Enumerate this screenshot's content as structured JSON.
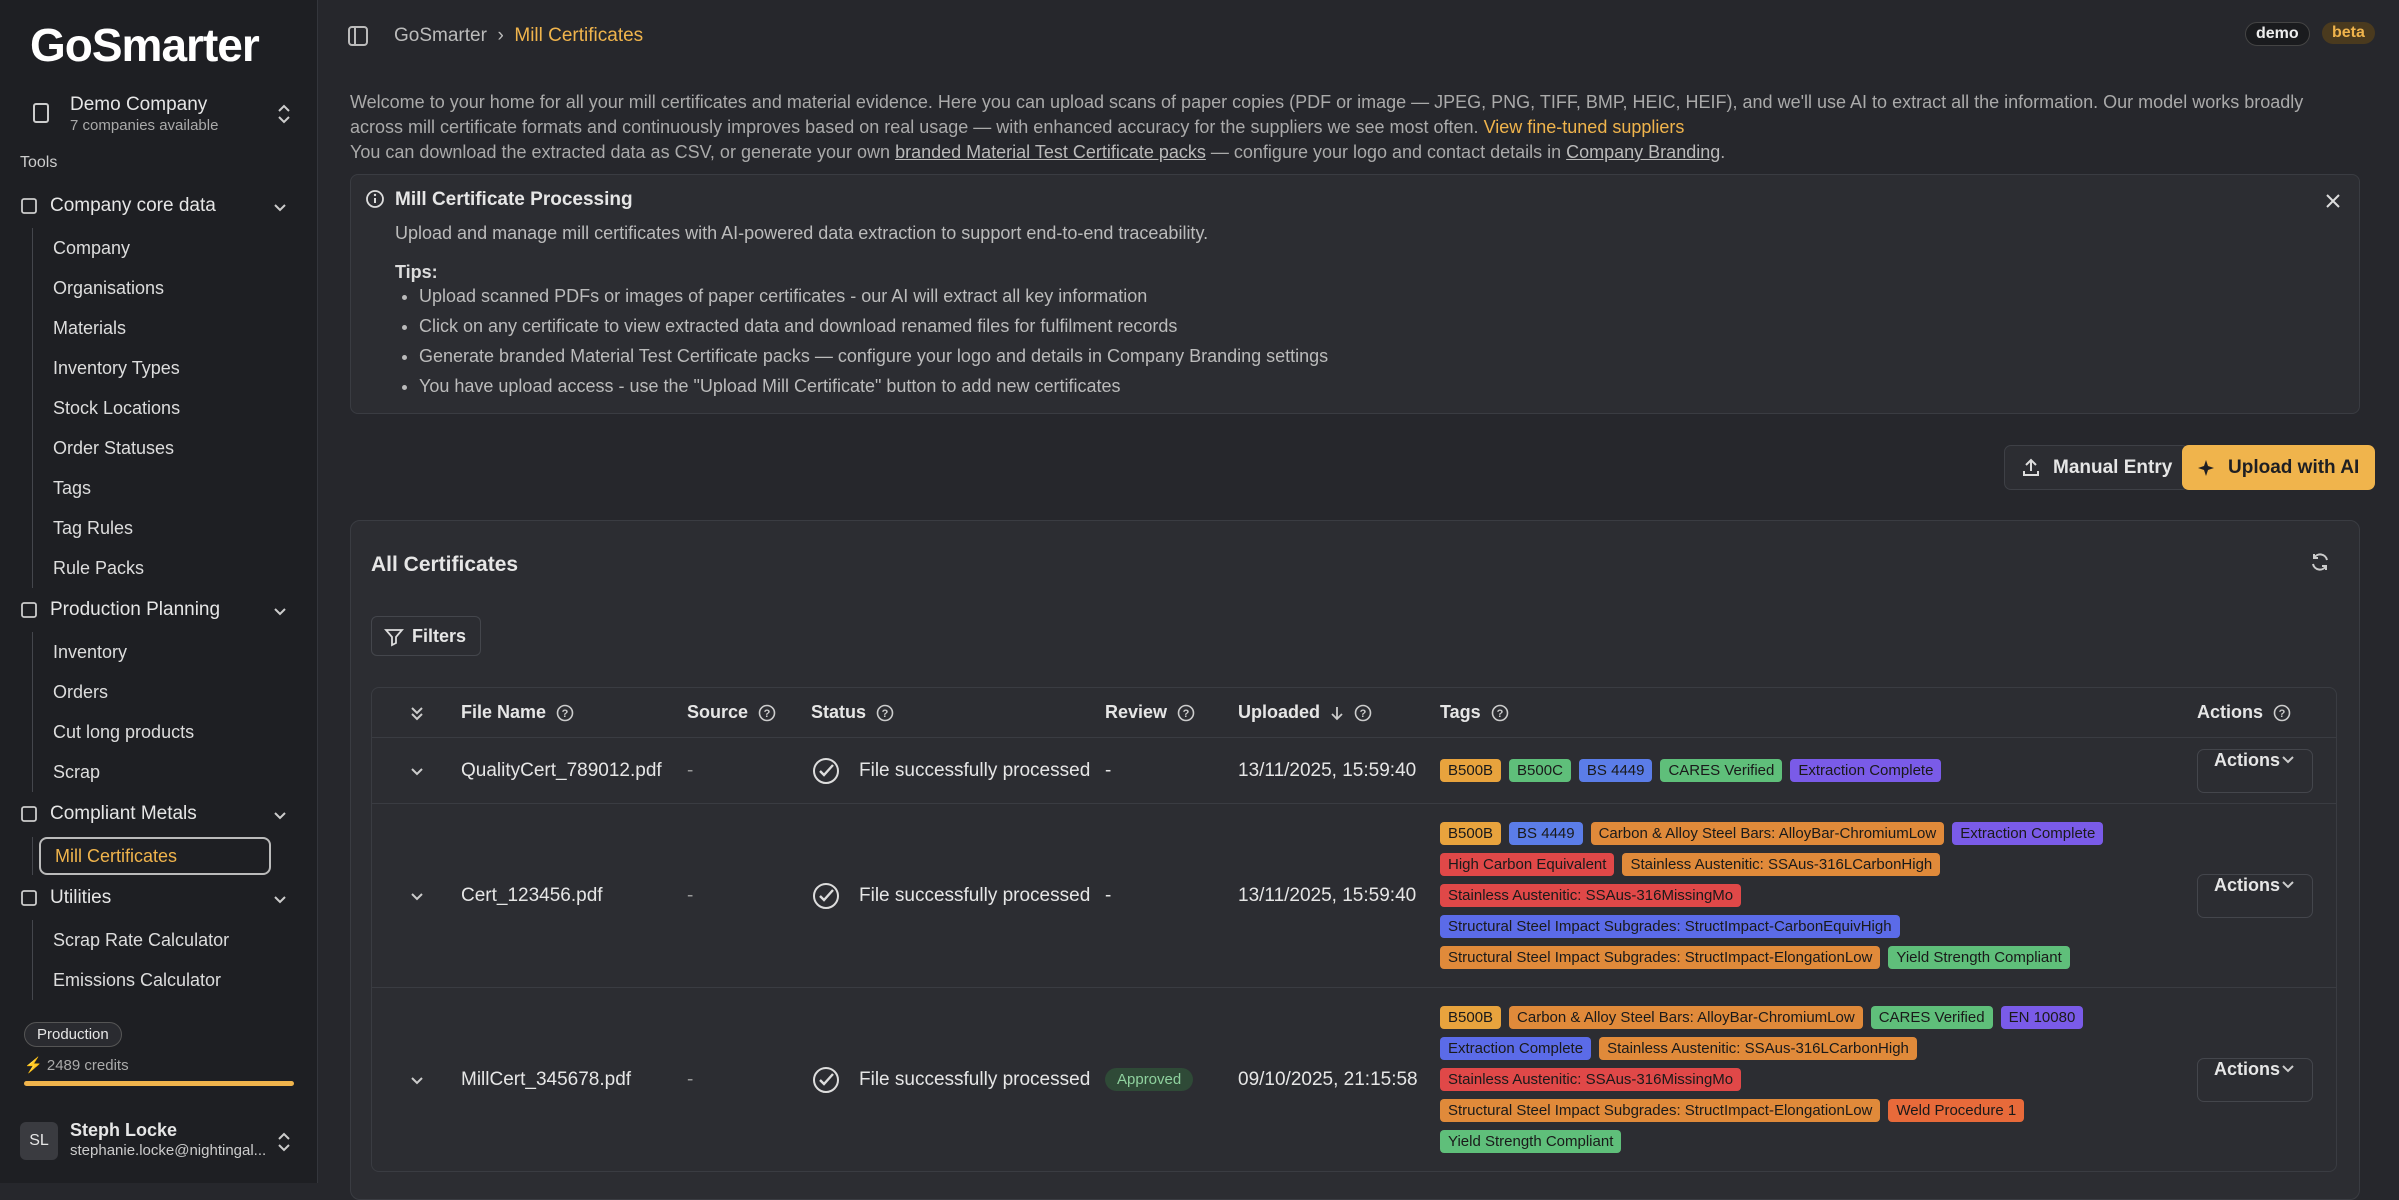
{
  "sidebar": {
    "logo": "GoSmarter",
    "company": {
      "name": "Demo Company",
      "sub": "7 companies available"
    },
    "section": "Tools",
    "groups": [
      {
        "title": "Company core data",
        "items": [
          {
            "label": "Company"
          },
          {
            "label": "Organisations"
          },
          {
            "label": "Materials"
          },
          {
            "label": "Inventory Types"
          },
          {
            "label": "Stock Locations"
          },
          {
            "label": "Order Statuses"
          },
          {
            "label": "Tags"
          },
          {
            "label": "Tag Rules"
          },
          {
            "label": "Rule Packs"
          }
        ]
      },
      {
        "title": "Production Planning",
        "items": [
          {
            "label": "Inventory"
          },
          {
            "label": "Orders"
          },
          {
            "label": "Cut long products"
          },
          {
            "label": "Scrap"
          }
        ]
      },
      {
        "title": "Compliant Metals",
        "items": [
          {
            "label": "Mill Certificates",
            "active": true
          }
        ]
      },
      {
        "title": "Utilities",
        "items": [
          {
            "label": "Scrap Rate Calculator"
          },
          {
            "label": "Emissions Calculator"
          }
        ]
      }
    ],
    "plan": "Production",
    "credits": "2489 credits",
    "user": {
      "initials": "SL",
      "name": "Steph Locke",
      "email": "stephanie.locke@nightingal..."
    }
  },
  "header": {
    "breadcrumb": [
      "GoSmarter",
      "Mill Certificates"
    ],
    "badges": [
      "demo",
      "beta"
    ]
  },
  "intro": {
    "line1": "Welcome to your home for all your mill certificates and material evidence. Here you can upload scans of paper copies (PDF or image — JPEG, PNG, TIFF, BMP, HEIC, HEIF), and we'll use AI to extract all the information. Our model works broadly across mill certificate formats and continuously improves based on real usage — with enhanced accuracy for the suppliers we see most often.",
    "link1": "View fine-tuned suppliers",
    "line2a": "You can download the extracted data as CSV, or generate your own",
    "link2": "branded Material Test Certificate packs",
    "line2b": "— configure your logo and contact details in",
    "link3": "Company Branding",
    "line2c": "."
  },
  "info": {
    "title": "Mill Certificate Processing",
    "description": "Upload and manage mill certificates with AI-powered data extraction to support end-to-end traceability.",
    "tips_label": "Tips:",
    "tips": [
      "Upload scanned PDFs or images of paper certificates - our AI will extract all key information",
      "Click on any certificate to view extracted data and download renamed files for fulfilment records",
      "Generate branded Material Test Certificate packs — configure your logo and details in Company Branding settings",
      "You have upload access - use the \"Upload Mill Certificate\" button to add new certificates"
    ]
  },
  "buttons": {
    "manual": "Manual Entry",
    "upload": "Upload with AI"
  },
  "table": {
    "title": "All Certificates",
    "filters": "Filters",
    "columns": [
      "File Name",
      "Source",
      "Status",
      "Review",
      "Uploaded",
      "Tags",
      "Actions"
    ],
    "rows": [
      {
        "file": "QualityCert_789012.pdf",
        "source": "-",
        "status": "File successfully processed",
        "review": "-",
        "uploaded": "13/11/2025, 15:59:40",
        "actions": "Actions",
        "tags": [
          {
            "label": "B500B",
            "color": "#e8a33d"
          },
          {
            "label": "B500C",
            "color": "#5fbf7a"
          },
          {
            "label": "BS 4449",
            "color": "#5b7de8"
          },
          {
            "label": "CARES Verified",
            "color": "#5fbf7a"
          },
          {
            "label": "Extraction Complete",
            "color": "#7a5be8"
          }
        ]
      },
      {
        "file": "Cert_123456.pdf",
        "source": "-",
        "status": "File successfully processed",
        "review": "-",
        "uploaded": "13/11/2025, 15:59:40",
        "actions": "Actions",
        "tags": [
          {
            "label": "B500B",
            "color": "#e8a33d"
          },
          {
            "label": "BS 4449",
            "color": "#5b7de8"
          },
          {
            "label": "Carbon & Alloy Steel Bars: AlloyBar-ChromiumLow",
            "color": "#e08a3a"
          },
          {
            "label": "Extraction Complete",
            "color": "#7a5be8"
          },
          {
            "label": "High Carbon Equivalent",
            "color": "#e04848"
          },
          {
            "label": "Stainless Austenitic: SSAus-316LCarbonHigh",
            "color": "#e08a3a"
          },
          {
            "label": "Stainless Austenitic: SSAus-316MissingMo",
            "color": "#e04848"
          },
          {
            "label": "Structural Steel Impact Subgrades: StructImpact-CarbonEquivHigh",
            "color": "#5b6be8"
          },
          {
            "label": "Structural Steel Impact Subgrades: StructImpact-ElongationLow",
            "color": "#e08a3a"
          },
          {
            "label": "Yield Strength Compliant",
            "color": "#5fbf7a"
          }
        ]
      },
      {
        "file": "MillCert_345678.pdf",
        "source": "-",
        "status": "File successfully processed",
        "review": "Approved",
        "uploaded": "09/10/2025, 21:15:58",
        "actions": "Actions",
        "tags": [
          {
            "label": "B500B",
            "color": "#e8a33d"
          },
          {
            "label": "Carbon & Alloy Steel Bars: AlloyBar-ChromiumLow",
            "color": "#e08a3a"
          },
          {
            "label": "CARES Verified",
            "color": "#5fbf7a"
          },
          {
            "label": "EN 10080",
            "color": "#7a5be8"
          },
          {
            "label": "Extraction Complete",
            "color": "#5b6be8"
          },
          {
            "label": "Stainless Austenitic: SSAus-316LCarbonHigh",
            "color": "#e08a3a"
          },
          {
            "label": "Stainless Austenitic: SSAus-316MissingMo",
            "color": "#e04848"
          },
          {
            "label": "Structural Steel Impact Subgrades: StructImpact-ElongationLow",
            "color": "#e08a3a"
          },
          {
            "label": "Weld Procedure 1",
            "color": "#e86a3a"
          },
          {
            "label": "Yield Strength Compliant",
            "color": "#5fbf7a"
          }
        ]
      }
    ]
  }
}
